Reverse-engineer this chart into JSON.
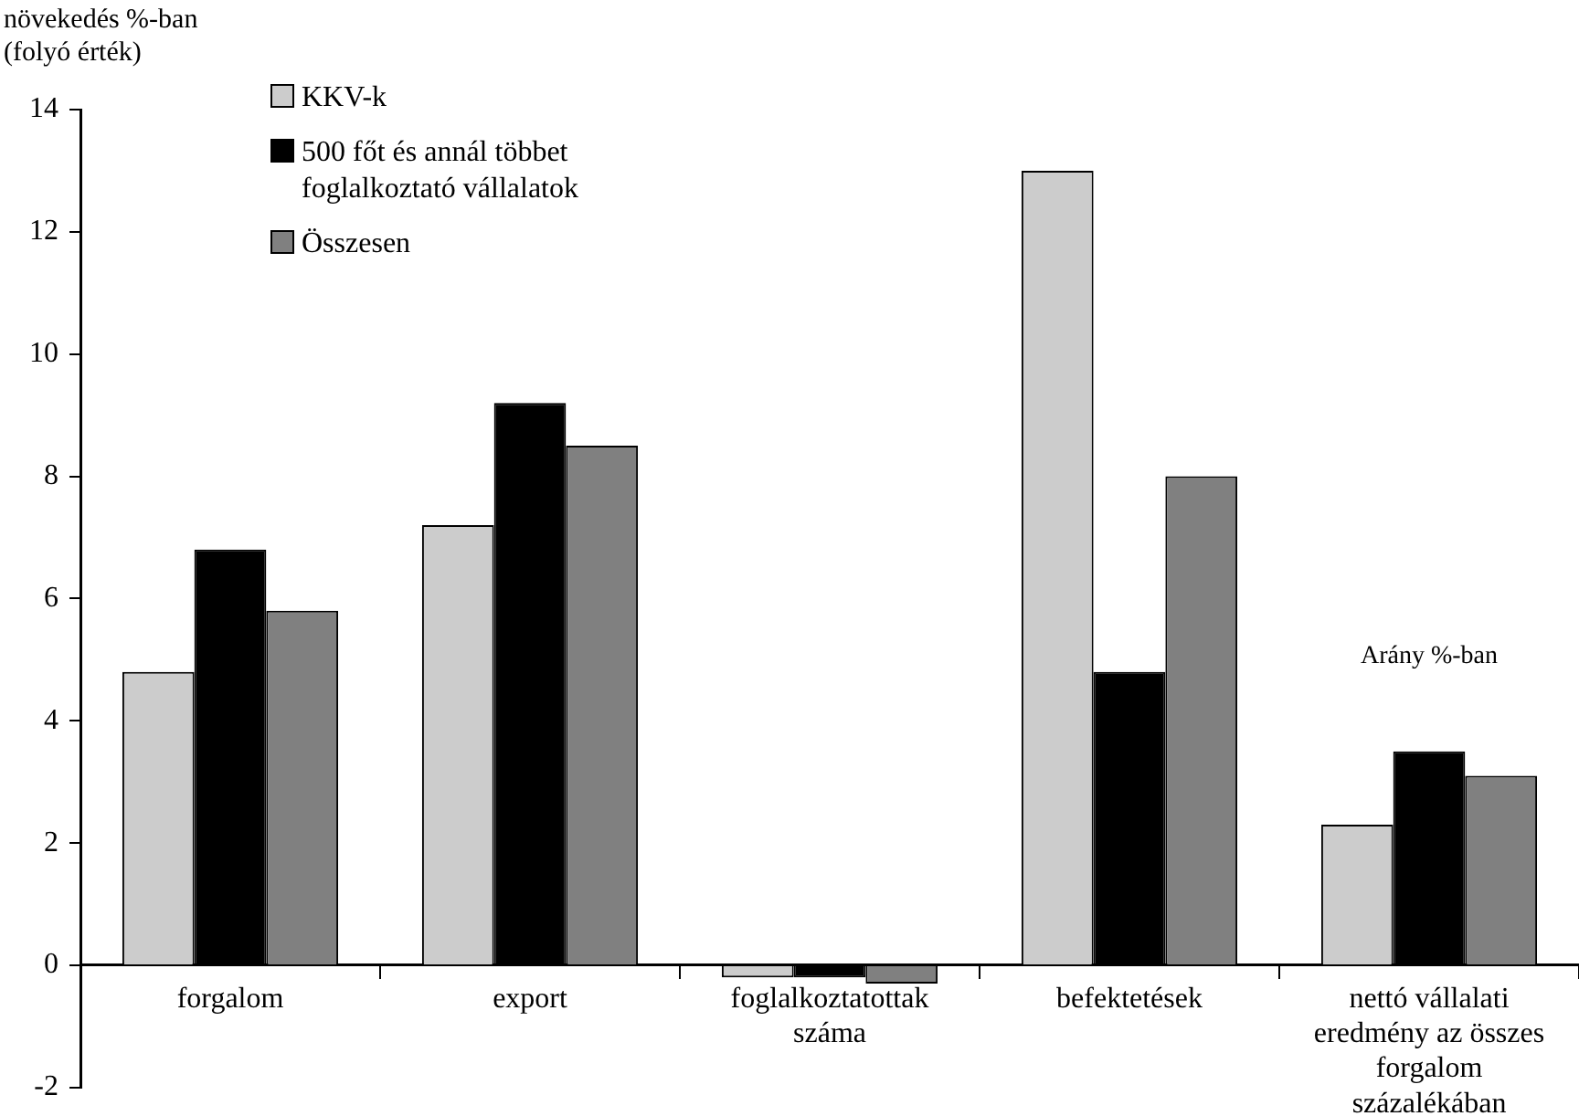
{
  "chart_data": {
    "type": "bar",
    "ylabel": "növekedés %-ban (folyó érték)",
    "categories": [
      "forgalom",
      "export",
      "foglalkoztatottak száma",
      "befektetések",
      "nettó vállalati eredmény az összes forgalom százalékában"
    ],
    "series": [
      {
        "name": "KKV-k",
        "color": "#cccccc",
        "values": [
          4.8,
          7.2,
          -0.2,
          13.0,
          2.3
        ]
      },
      {
        "name": "500 főt és annál többet foglalkoztató vállalatok",
        "color": "#000000",
        "values": [
          6.8,
          9.2,
          -0.2,
          4.8,
          3.5
        ]
      },
      {
        "name": "Összesen",
        "color": "#808080",
        "values": [
          5.8,
          8.5,
          -0.3,
          8.0,
          3.1
        ]
      }
    ],
    "ylim": [
      -2,
      14
    ],
    "yticks": [
      -2,
      0,
      2,
      4,
      6,
      8,
      10,
      12,
      14
    ],
    "grid": false,
    "legend": "top left",
    "annotations": [
      "Arány %-ban"
    ]
  }
}
